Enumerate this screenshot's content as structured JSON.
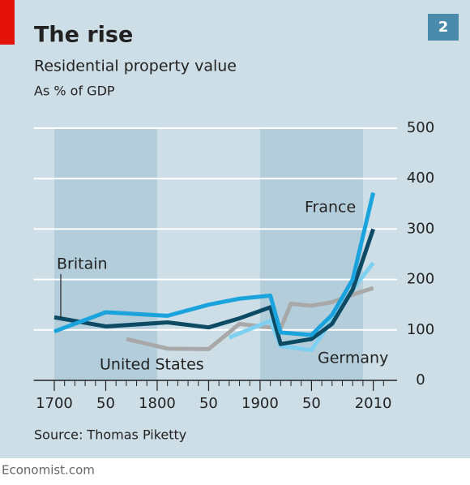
{
  "chart_data": {
    "type": "line",
    "title": "The rise",
    "badge": "2",
    "subtitle": "Residential property value",
    "unit_label": "As % of GDP",
    "source": "Source: Thomas Piketty",
    "footer": "Economist.com",
    "xlim": [
      1680,
      2030
    ],
    "ylim": [
      0,
      500
    ],
    "yticks": [
      0,
      100,
      200,
      300,
      400,
      500
    ],
    "xticks": [
      1700,
      {
        "value": 1750,
        "label": "50"
      },
      1800,
      {
        "value": 1850,
        "label": "50"
      },
      1900,
      {
        "value": 1950,
        "label": "50"
      },
      2010
    ],
    "xminorticks": [
      1700,
      1710,
      1720,
      1730,
      1740,
      1750,
      1760,
      1770,
      1780,
      1790,
      1800,
      1810,
      1820,
      1830,
      1840,
      1850,
      1860,
      1870,
      1880,
      1890,
      1900,
      1910,
      1920,
      1930,
      1940,
      1950,
      1960,
      1970,
      1980,
      1990,
      2000,
      2010,
      2020
    ],
    "shaded_ranges": [
      [
        1700,
        1800
      ],
      [
        1900,
        2000
      ]
    ],
    "grid": true,
    "series": [
      {
        "name": "United States",
        "color": "#a8a8a8",
        "x": [
          1770,
          1810,
          1850,
          1880,
          1910,
          1920,
          1930,
          1950,
          1970,
          1990,
          2010
        ],
        "values": [
          82,
          63,
          62,
          112,
          105,
          103,
          152,
          148,
          155,
          170,
          183
        ]
      },
      {
        "name": "Germany",
        "color": "#7fd0f0",
        "x": [
          1870,
          1910,
          1920,
          1950,
          1970,
          1990,
          2010
        ],
        "values": [
          85,
          118,
          68,
          60,
          120,
          180,
          233
        ]
      },
      {
        "name": "Britain",
        "color": "#0d4a63",
        "x": [
          1700,
          1750,
          1810,
          1850,
          1880,
          1910,
          1920,
          1950,
          1970,
          1990,
          2010
        ],
        "values": [
          125,
          107,
          115,
          105,
          123,
          145,
          72,
          82,
          112,
          180,
          300
        ]
      },
      {
        "name": "France",
        "color": "#1aa3dc",
        "x": [
          1700,
          1750,
          1810,
          1850,
          1880,
          1910,
          1920,
          1950,
          1970,
          1990,
          2010
        ],
        "values": [
          97,
          135,
          128,
          150,
          162,
          168,
          95,
          90,
          130,
          200,
          372
        ]
      }
    ]
  }
}
